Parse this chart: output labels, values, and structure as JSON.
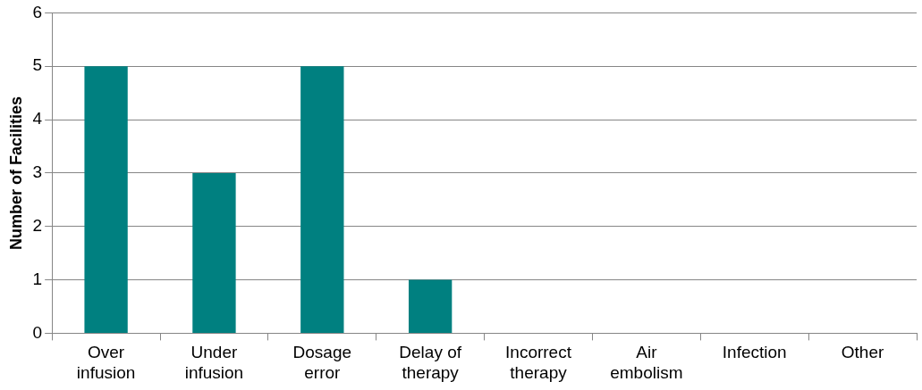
{
  "chart_data": {
    "type": "bar",
    "ylabel": "Number of Facilities",
    "categories": [
      "Over infusion",
      "Under infusion",
      "Dosage error",
      "Delay of therapy",
      "Incorrect therapy",
      "Air embolism",
      "Infection",
      "Other"
    ],
    "values": [
      5,
      3,
      5,
      1,
      0,
      0,
      0,
      0
    ],
    "color": "#008080",
    "ylim": [
      0,
      6
    ],
    "yticks": [
      0,
      1,
      2,
      3,
      4,
      5,
      6
    ],
    "grid": "y",
    "legend": false
  }
}
